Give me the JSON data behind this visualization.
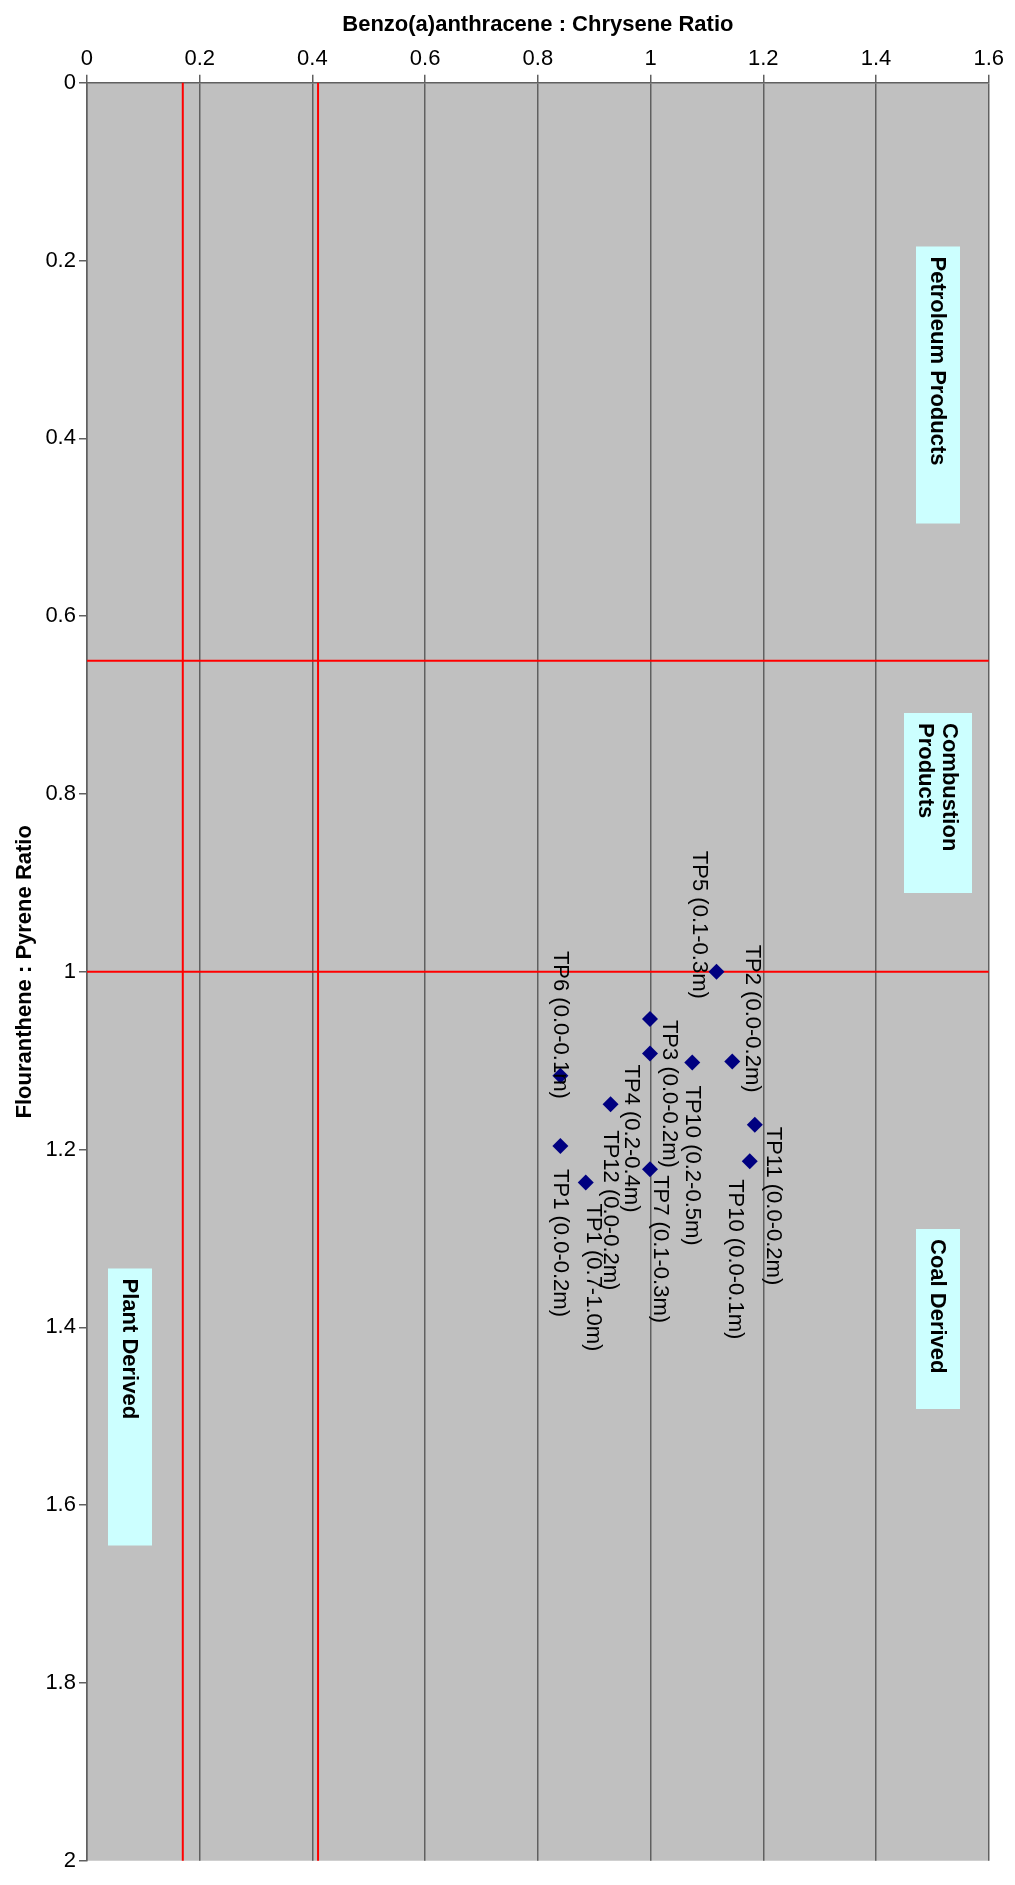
{
  "chart_data": {
    "type": "scatter",
    "xlabel": "Benzo(a)anthracene : Chrysene Ratio",
    "ylabel": "Flouranthene : Pyrene Ratio",
    "xlim": [
      0,
      1.6
    ],
    "xticks": [
      0,
      0.2,
      0.4,
      0.6,
      0.8,
      1,
      1.2,
      1.4,
      1.6
    ],
    "ylim": [
      2,
      0
    ],
    "yticks": [
      0,
      0.2,
      0.4,
      0.6,
      0.8,
      1,
      1.2,
      1.4,
      1.6,
      1.8,
      2
    ],
    "grid": "x",
    "marker": "diamond",
    "series": [
      {
        "color": "#000080",
        "x": [
          1.117,
          0.999,
          0.999,
          1.074,
          1.145,
          0.84,
          0.929,
          1.185,
          0.84,
          1.176,
          0.999,
          0.885
        ],
        "values": [
          1.0,
          1.053,
          1.092,
          1.102,
          1.101,
          1.117,
          1.149,
          1.172,
          1.196,
          1.213,
          1.222,
          1.237
        ]
      }
    ],
    "ref_lines": [
      {
        "axis": "y",
        "value": 0.65,
        "color": "#ff0000"
      },
      {
        "axis": "y",
        "value": 1.0,
        "color": "#ff0000"
      },
      {
        "axis": "x",
        "value": 0.17,
        "color": "#ff0000"
      },
      {
        "axis": "x",
        "value": 0.41,
        "color": "#ff0000"
      }
    ],
    "annotations": [
      "Petroleum Products",
      "Combustion Products",
      "Coal Derived",
      "Plant Derived",
      {
        "text": "TP5 (0.1-0.3m)",
        "x": 1.117,
        "y": 1.0
      },
      {
        "text": "TP3 (0.0-0.2m)",
        "x": 0.999,
        "y": 1.053
      },
      {
        "text": "TP4 (0.2-0.4m)",
        "x": 0.999,
        "y": 1.092
      },
      {
        "text": "TP10 (0.2-0.5m)",
        "x": 1.074,
        "y": 1.102
      },
      {
        "text": "TP2 (0.0-0.2m)",
        "x": 1.145,
        "y": 1.101
      },
      {
        "text": "TP6 (0.0-0.1m)",
        "x": 0.84,
        "y": 1.117
      },
      {
        "text": "TP12 (0.0-0.2m)",
        "x": 0.929,
        "y": 1.149
      },
      {
        "text": "TP11 (0.0-0.2m)",
        "x": 1.185,
        "y": 1.172
      },
      {
        "text": "TP1 (0.0-0.2m)",
        "x": 0.84,
        "y": 1.196
      },
      {
        "text": "TP10 (0.0-0.1m)",
        "x": 1.176,
        "y": 1.213
      },
      {
        "text": "TP7 (0.1-0.3m)",
        "x": 0.999,
        "y": 1.222
      },
      {
        "text": "TP1 (0.7-1.0m)",
        "x": 0.885,
        "y": 1.237
      }
    ]
  }
}
